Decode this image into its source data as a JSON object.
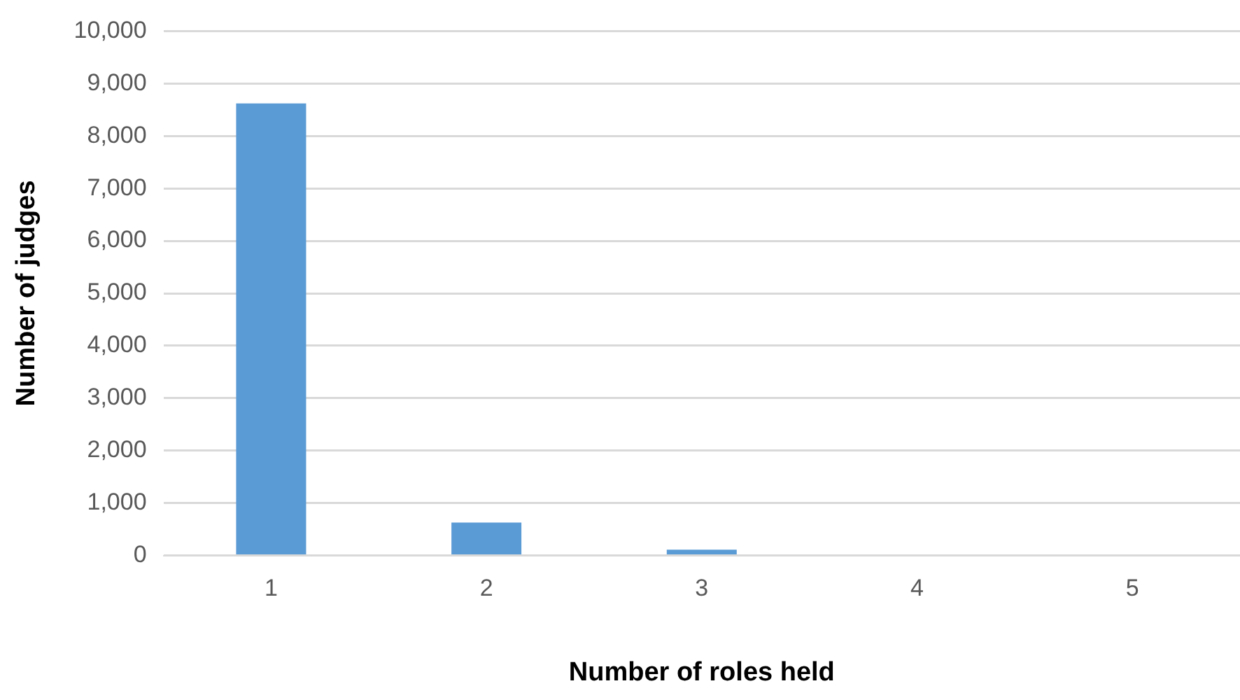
{
  "chart_data": {
    "type": "bar",
    "xlabel": "Number of roles held",
    "ylabel": "Number of judges",
    "categories": [
      "1",
      "2",
      "3",
      "4",
      "5"
    ],
    "series": [
      {
        "color": "#5b9bd5",
        "values": [
          8620,
          630,
          110,
          0,
          0
        ]
      }
    ],
    "ylim": [
      0,
      10000
    ],
    "yticks": [
      {
        "value": 0,
        "label": "0"
      },
      {
        "value": 1000,
        "label": "1,000"
      },
      {
        "value": 2000,
        "label": "2,000"
      },
      {
        "value": 3000,
        "label": "3,000"
      },
      {
        "value": 4000,
        "label": "4,000"
      },
      {
        "value": 5000,
        "label": "5,000"
      },
      {
        "value": 6000,
        "label": "6,000"
      },
      {
        "value": 7000,
        "label": "7,000"
      },
      {
        "value": 8000,
        "label": "8,000"
      },
      {
        "value": 9000,
        "label": "9,000"
      },
      {
        "value": 10000,
        "label": "10,000"
      }
    ],
    "grid": "y",
    "legend": false
  }
}
